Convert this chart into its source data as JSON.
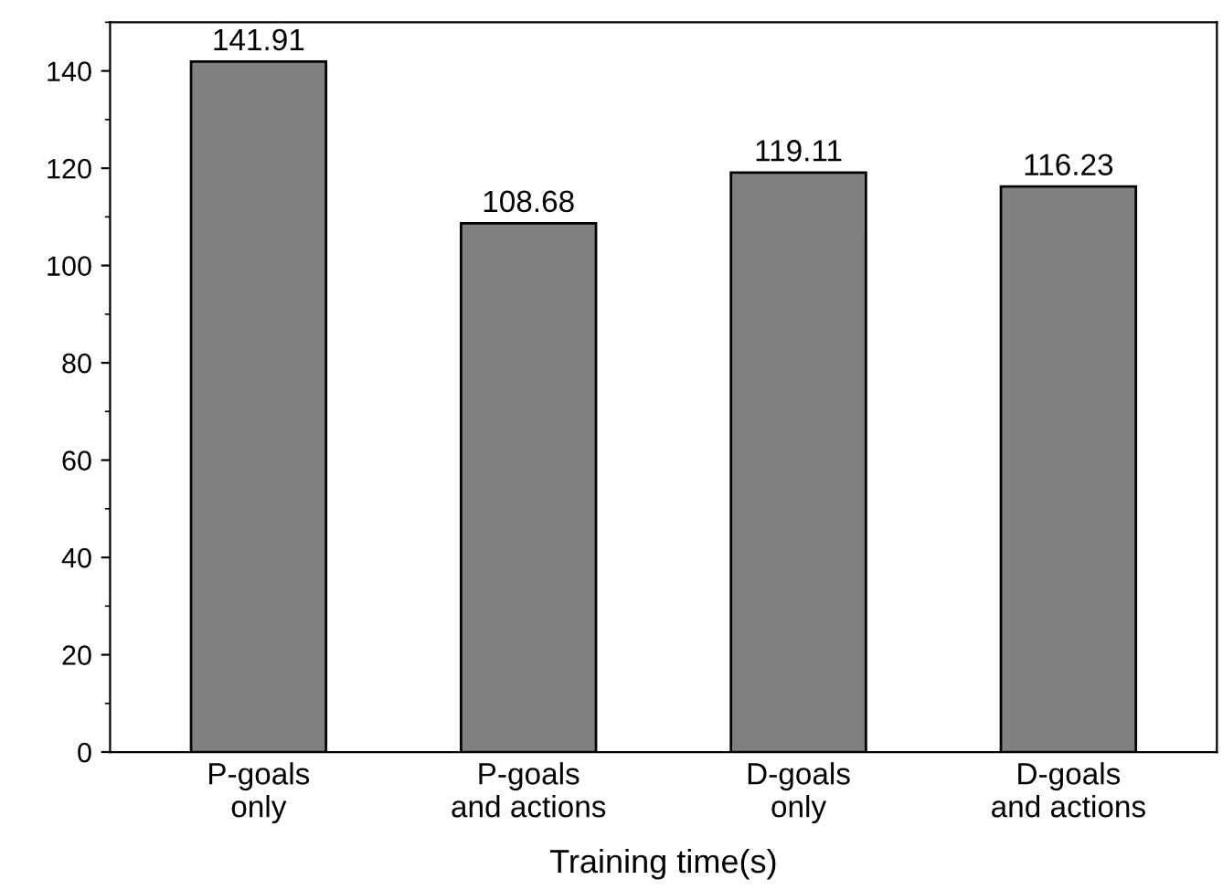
{
  "chart_data": {
    "type": "bar",
    "xlabel": "Training time(s)",
    "categories": [
      "P-goals\nonly",
      "P-goals\nand actions",
      "D-goals\nonly",
      "D-goals\nand actions"
    ],
    "values": [
      141.91,
      108.68,
      119.11,
      116.23
    ],
    "value_labels": [
      "141.91",
      "108.68",
      "119.11",
      "116.23"
    ],
    "color": "#808080",
    "ylim": [
      0,
      150
    ],
    "yticks": [
      0,
      20,
      40,
      60,
      80,
      100,
      120,
      140
    ],
    "grid": false
  }
}
